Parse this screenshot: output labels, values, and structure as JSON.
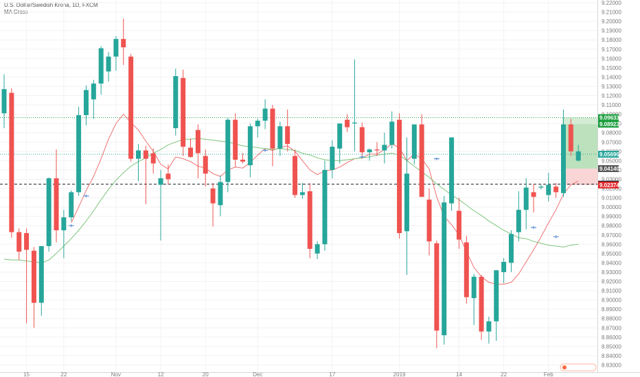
{
  "header": {
    "title": "U.S. Dollar/Swedish Krona, 1D, FXCM",
    "indicator": "MA Cross"
  },
  "colors": {
    "up": "#26a69a",
    "down": "#ef5350",
    "ma_fast": "#f07070",
    "ma_slow": "#7cc47c",
    "grid": "#f2f2f2",
    "axis_text": "#7a7a7a",
    "take_profit_zone": "#cde9cd",
    "stop_zone": "#f9d0d2",
    "badge_last": "#26a69a",
    "badge_green": "#1b9e3e",
    "badge_black": "#131722",
    "badge_red": "#e0292b",
    "badge_gray": "#555555"
  },
  "chart_data": {
    "type": "candlestick",
    "title": "U.S. Dollar/Swedish Krona, 1D, FXCM",
    "indicator": "MA Cross",
    "ylim": [
      8.83,
      9.225
    ],
    "y_ticks": [
      "9.22000",
      "9.21000",
      "9.20000",
      "9.19000",
      "9.18000",
      "9.17000",
      "9.16000",
      "9.15000",
      "9.14000",
      "9.13000",
      "9.12000",
      "9.11000",
      "9.10000",
      "9.09000",
      "9.08000",
      "9.07000",
      "9.06000",
      "9.05000",
      "9.04000",
      "9.03000",
      "9.02000",
      "9.01000",
      "9.00000",
      "8.99000",
      "8.98000",
      "8.97000",
      "8.96000",
      "8.95000",
      "8.94000",
      "8.93000",
      "8.92000",
      "8.91000",
      "8.90000",
      "8.89000",
      "8.88000",
      "8.87000",
      "8.86000",
      "8.85000",
      "8.84000",
      "8.83000"
    ],
    "x_ticks": [
      {
        "label": "15",
        "index": 3
      },
      {
        "label": "22",
        "index": 8
      },
      {
        "label": "Nov",
        "index": 15
      },
      {
        "label": "12",
        "index": 21
      },
      {
        "label": "20",
        "index": 27
      },
      {
        "label": "Dec",
        "index": 34
      },
      {
        "label": "17",
        "index": 44
      },
      {
        "label": "2019",
        "index": 53
      },
      {
        "label": "14",
        "index": 61
      },
      {
        "label": "22",
        "index": 67
      },
      {
        "label": "Feb",
        "index": 73
      }
    ],
    "grid": true,
    "candles": [
      {
        "o": 9.101,
        "h": 9.143,
        "l": 9.085,
        "c": 9.127
      },
      {
        "o": 9.123,
        "h": 9.128,
        "l": 8.967,
        "c": 8.973
      },
      {
        "o": 8.973,
        "h": 8.977,
        "l": 8.943,
        "c": 8.952
      },
      {
        "o": 8.972,
        "h": 8.977,
        "l": 8.875,
        "c": 8.954
      },
      {
        "o": 8.953,
        "h": 8.957,
        "l": 8.87,
        "c": 8.897
      },
      {
        "o": 8.897,
        "h": 8.957,
        "l": 8.883,
        "c": 8.958
      },
      {
        "o": 8.958,
        "h": 9.032,
        "l": 8.952,
        "c": 9.031
      },
      {
        "o": 9.031,
        "h": 9.062,
        "l": 8.962,
        "c": 8.975
      },
      {
        "o": 8.975,
        "h": 8.997,
        "l": 8.945,
        "c": 8.989
      },
      {
        "o": 8.989,
        "h": 9.018,
        "l": 8.985,
        "c": 9.016
      },
      {
        "o": 9.016,
        "h": 9.108,
        "l": 9.012,
        "c": 9.099
      },
      {
        "o": 9.099,
        "h": 9.131,
        "l": 9.088,
        "c": 9.126
      },
      {
        "o": 9.116,
        "h": 9.137,
        "l": 9.095,
        "c": 9.133
      },
      {
        "o": 9.133,
        "h": 9.173,
        "l": 9.121,
        "c": 9.171
      },
      {
        "o": 9.146,
        "h": 9.167,
        "l": 9.135,
        "c": 9.162
      },
      {
        "o": 9.162,
        "h": 9.184,
        "l": 9.147,
        "c": 9.181
      },
      {
        "o": 9.181,
        "h": 9.203,
        "l": 9.153,
        "c": 9.172
      },
      {
        "o": 9.162,
        "h": 9.165,
        "l": 9.049,
        "c": 9.052
      },
      {
        "o": 9.052,
        "h": 9.068,
        "l": 9.028,
        "c": 9.061
      },
      {
        "o": 9.061,
        "h": 9.066,
        "l": 9.003,
        "c": 9.052
      },
      {
        "o": 9.058,
        "h": 9.063,
        "l": 9.036,
        "c": 9.047
      },
      {
        "o": 9.024,
        "h": 9.04,
        "l": 8.964,
        "c": 9.031
      },
      {
        "o": 9.036,
        "h": 9.046,
        "l": 9.024,
        "c": 9.03
      },
      {
        "o": 9.085,
        "h": 9.149,
        "l": 9.077,
        "c": 9.141
      },
      {
        "o": 9.139,
        "h": 9.148,
        "l": 9.055,
        "c": 9.065
      },
      {
        "o": 9.064,
        "h": 9.074,
        "l": 9.053,
        "c": 9.054
      },
      {
        "o": 9.083,
        "h": 9.089,
        "l": 9.031,
        "c": 9.058
      },
      {
        "o": 9.055,
        "h": 9.062,
        "l": 9.022,
        "c": 9.036
      },
      {
        "o": 9.02,
        "h": 9.026,
        "l": 8.979,
        "c": 9.004
      },
      {
        "o": 9.002,
        "h": 9.034,
        "l": 8.99,
        "c": 9.027
      },
      {
        "o": 9.027,
        "h": 9.096,
        "l": 9.016,
        "c": 9.094
      },
      {
        "o": 9.094,
        "h": 9.101,
        "l": 9.043,
        "c": 9.051
      },
      {
        "o": 9.051,
        "h": 9.058,
        "l": 9.047,
        "c": 9.049
      },
      {
        "o": 9.045,
        "h": 9.09,
        "l": 9.032,
        "c": 9.087
      },
      {
        "o": 9.087,
        "h": 9.095,
        "l": 9.075,
        "c": 9.093
      },
      {
        "o": 9.093,
        "h": 9.116,
        "l": 9.084,
        "c": 9.106
      },
      {
        "o": 9.106,
        "h": 9.11,
        "l": 9.044,
        "c": 9.063
      },
      {
        "o": 9.063,
        "h": 9.092,
        "l": 9.055,
        "c": 9.087
      },
      {
        "o": 9.087,
        "h": 9.105,
        "l": 9.06,
        "c": 9.068
      },
      {
        "o": 9.055,
        "h": 9.062,
        "l": 9.01,
        "c": 9.013
      },
      {
        "o": 9.013,
        "h": 9.026,
        "l": 9.009,
        "c": 9.016
      },
      {
        "o": 9.017,
        "h": 9.026,
        "l": 8.945,
        "c": 8.955
      },
      {
        "o": 8.95,
        "h": 8.963,
        "l": 8.944,
        "c": 8.96
      },
      {
        "o": 8.96,
        "h": 9.05,
        "l": 8.953,
        "c": 9.04
      },
      {
        "o": 9.04,
        "h": 9.072,
        "l": 9.031,
        "c": 9.065
      },
      {
        "o": 9.063,
        "h": 9.087,
        "l": 9.047,
        "c": 9.09
      },
      {
        "o": 9.094,
        "h": 9.1,
        "l": 9.081,
        "c": 9.086
      },
      {
        "o": 9.09,
        "h": 9.159,
        "l": 9.06,
        "c": 9.091
      },
      {
        "o": 9.086,
        "h": 9.091,
        "l": 9.052,
        "c": 9.059
      },
      {
        "o": 9.059,
        "h": 9.063,
        "l": 9.05,
        "c": 9.062
      },
      {
        "o": 9.062,
        "h": 9.07,
        "l": 9.055,
        "c": 9.061
      },
      {
        "o": 9.061,
        "h": 9.08,
        "l": 9.047,
        "c": 9.067
      },
      {
        "o": 9.067,
        "h": 9.103,
        "l": 9.063,
        "c": 9.092
      },
      {
        "o": 9.094,
        "h": 9.101,
        "l": 8.966,
        "c": 8.972
      },
      {
        "o": 8.974,
        "h": 9.075,
        "l": 8.927,
        "c": 9.036
      },
      {
        "o": 9.052,
        "h": 9.086,
        "l": 9.046,
        "c": 9.089
      },
      {
        "o": 9.089,
        "h": 9.1,
        "l": 9.011,
        "c": 9.011
      },
      {
        "o": 9.008,
        "h": 9.02,
        "l": 8.948,
        "c": 8.963
      },
      {
        "o": 8.961,
        "h": 8.964,
        "l": 8.848,
        "c": 8.867
      },
      {
        "o": 8.862,
        "h": 9.012,
        "l": 8.852,
        "c": 9.005
      },
      {
        "o": 9.004,
        "h": 9.073,
        "l": 8.996,
        "c": 9.075
      },
      {
        "o": 8.996,
        "h": 9.01,
        "l": 8.955,
        "c": 8.965
      },
      {
        "o": 8.962,
        "h": 8.969,
        "l": 8.896,
        "c": 8.903
      },
      {
        "o": 8.902,
        "h": 8.928,
        "l": 8.873,
        "c": 8.925
      },
      {
        "o": 8.925,
        "h": 8.927,
        "l": 8.857,
        "c": 8.866
      },
      {
        "o": 8.866,
        "h": 8.882,
        "l": 8.853,
        "c": 8.877
      },
      {
        "o": 8.877,
        "h": 8.932,
        "l": 8.856,
        "c": 8.932
      },
      {
        "o": 8.93,
        "h": 8.945,
        "l": 8.918,
        "c": 8.941
      },
      {
        "o": 8.94,
        "h": 8.975,
        "l": 8.93,
        "c": 8.971
      },
      {
        "o": 8.973,
        "h": 9.017,
        "l": 8.963,
        "c": 8.997
      },
      {
        "o": 8.997,
        "h": 9.031,
        "l": 8.976,
        "c": 9.021
      },
      {
        "o": 9.016,
        "h": 9.025,
        "l": 8.994,
        "c": 9.011
      },
      {
        "o": 9.021,
        "h": 9.024,
        "l": 9.019,
        "c": 9.022
      },
      {
        "o": 9.013,
        "h": 9.037,
        "l": 9.006,
        "c": 9.024
      },
      {
        "o": 9.022,
        "h": 9.026,
        "l": 9.01,
        "c": 9.016
      },
      {
        "o": 9.015,
        "h": 9.105,
        "l": 9.011,
        "c": 9.089
      },
      {
        "o": 9.089,
        "h": 9.095,
        "l": 9.055,
        "c": 9.06
      },
      {
        "o": 9.05,
        "h": 9.067,
        "l": 9.049,
        "c": 9.06
      }
    ],
    "moving_averages": [
      {
        "name": "fast",
        "values": [
          null,
          null,
          null,
          null,
          null,
          null,
          null,
          null,
          null,
          8.983,
          9.0,
          9.018,
          9.033,
          9.052,
          9.073,
          9.09,
          9.1,
          9.091,
          9.083,
          9.071,
          9.06,
          9.046,
          9.041,
          9.054,
          9.052,
          9.049,
          9.044,
          9.042,
          9.036,
          9.033,
          9.04,
          9.043,
          9.042,
          9.048,
          9.056,
          9.063,
          9.061,
          9.064,
          9.066,
          9.06,
          9.05,
          9.04,
          9.035,
          9.039,
          9.04,
          9.043,
          9.048,
          9.052,
          9.053,
          9.057,
          9.057,
          9.062,
          9.068,
          9.064,
          9.05,
          9.057,
          9.052,
          9.041,
          9.011,
          8.99,
          8.981,
          8.97,
          8.952,
          8.935,
          8.925,
          8.919,
          8.917,
          8.917,
          8.919,
          8.928,
          8.941,
          8.954,
          8.968,
          8.983,
          8.997,
          9.014,
          9.024,
          9.028
        ]
      },
      {
        "name": "slow",
        "values": [
          8.944,
          8.943,
          8.943,
          8.942,
          8.941,
          8.94,
          8.943,
          8.95,
          8.958,
          8.966,
          8.975,
          8.985,
          8.996,
          9.008,
          9.019,
          9.029,
          9.037,
          9.044,
          9.049,
          9.053,
          9.058,
          9.062,
          9.067,
          9.07,
          9.073,
          9.073,
          9.074,
          9.073,
          9.072,
          9.071,
          9.07,
          9.068,
          9.066,
          9.065,
          9.064,
          9.063,
          9.062,
          9.063,
          9.062,
          9.061,
          9.058,
          9.056,
          9.053,
          9.051,
          9.05,
          9.05,
          9.051,
          9.052,
          9.053,
          9.054,
          9.056,
          9.057,
          9.058,
          9.056,
          9.05,
          9.044,
          9.038,
          9.032,
          9.025,
          9.019,
          9.013,
          9.008,
          9.002,
          8.996,
          8.991,
          8.985,
          8.98,
          8.975,
          8.971,
          8.967,
          8.966,
          8.963,
          8.961,
          8.959,
          8.958,
          8.957,
          8.959,
          8.96
        ]
      }
    ],
    "cross_markers": [
      {
        "index": 9,
        "price": 8.98
      },
      {
        "index": 11,
        "price": 9.012
      },
      {
        "index": 35,
        "price": 9.061
      },
      {
        "index": 48,
        "price": 9.054
      },
      {
        "index": 58,
        "price": 9.052
      },
      {
        "index": 71,
        "price": 8.978
      },
      {
        "index": 74,
        "price": 8.968
      }
    ],
    "horizontal_lines": [
      {
        "price": 9.09633,
        "style": "dotted",
        "color": "#1b9e3e"
      },
      {
        "price": 9.0569,
        "style": "dotted",
        "color": "#26a69a"
      },
      {
        "price": 9.02463,
        "style": "dashed",
        "color": "#131722"
      }
    ],
    "position": {
      "from_index": 75,
      "entry": 9.0414,
      "target": 9.09633,
      "stop": 9.02374,
      "target_label": "9.09633",
      "entry_label": "9.04140",
      "stop_label": "9.02374"
    },
    "price_badges": [
      {
        "label": "9.09633",
        "price": 9.09633,
        "kind": "badge_green"
      },
      {
        "label": "9.08923",
        "price": 9.08923,
        "kind": "badge_green"
      },
      {
        "label": "9.05690",
        "price": 9.0569,
        "kind": "badge_last"
      },
      {
        "label": "9.04140",
        "price": 9.0414,
        "kind": "badge_gray"
      },
      {
        "label": "9.02463",
        "price": 9.02463,
        "kind": "badge_black"
      },
      {
        "label": "9.02374",
        "price": 9.02374,
        "kind": "badge_red"
      }
    ]
  }
}
